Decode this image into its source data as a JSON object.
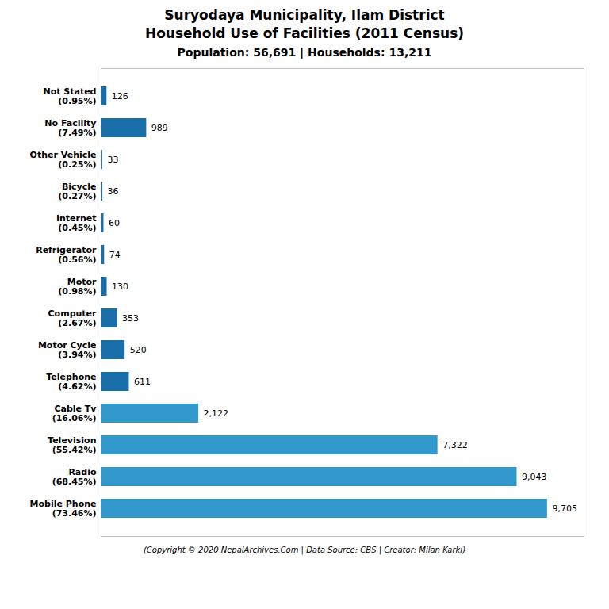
{
  "chart_data": {
    "type": "bar",
    "orientation": "horizontal",
    "title": "Suryodaya Municipality, Ilam District\nHousehold Use of Facilities (2011 Census)",
    "subtitle": "Population: 56,691 | Households: 13,211",
    "caption": "(Copyright © 2020 NepalArchives.Com | Data Source: CBS | Creator: Milan Karki)",
    "categories": [
      "Not Stated\n(0.95%)",
      "No Facility\n(7.49%)",
      "Other Vehicle\n(0.25%)",
      "Bicycle\n(0.27%)",
      "Internet\n(0.45%)",
      "Refrigerator\n(0.56%)",
      "Motor\n(0.98%)",
      "Computer\n(2.67%)",
      "Motor Cycle\n(3.94%)",
      "Telephone\n(4.62%)",
      "Cable Tv\n(16.06%)",
      "Television\n(55.42%)",
      "Radio\n(68.45%)",
      "Mobile Phone\n(73.46%)"
    ],
    "values": [
      126,
      989,
      33,
      36,
      60,
      74,
      130,
      353,
      520,
      611,
      2122,
      7322,
      9043,
      9705
    ],
    "value_labels": [
      "126",
      "989",
      "33",
      "36",
      "60",
      "74",
      "130",
      "353",
      "520",
      "611",
      "2,122",
      "7,322",
      "9,043",
      "9,705"
    ],
    "colors": [
      "#1a6fab",
      "#1a6fab",
      "#1a6fab",
      "#1a6fab",
      "#1a6fab",
      "#1a6fab",
      "#1a6fab",
      "#1a6fab",
      "#1a6fab",
      "#1a6fab",
      "#3399cc",
      "#3399cc",
      "#3399cc",
      "#3399cc"
    ],
    "xlim": [
      0,
      10500
    ],
    "data_labels": true,
    "tick_labels": "y",
    "grid": false
  }
}
